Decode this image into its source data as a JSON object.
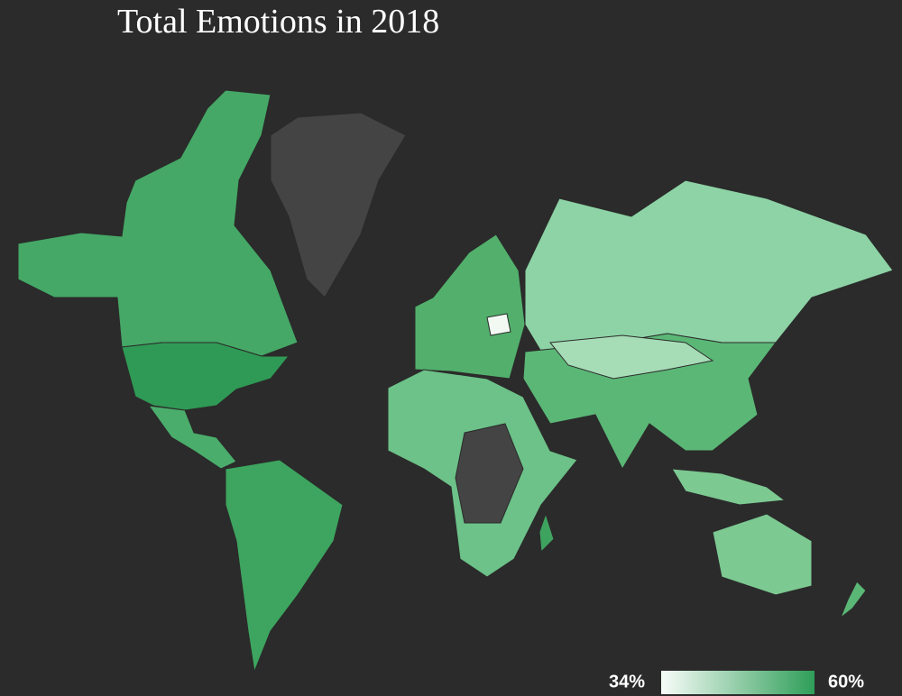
{
  "title": "Total Emotions in 2018",
  "legend": {
    "min": {
      "value": 34,
      "label": "34%"
    },
    "max": {
      "value": 60,
      "label": "60%"
    }
  }
}
